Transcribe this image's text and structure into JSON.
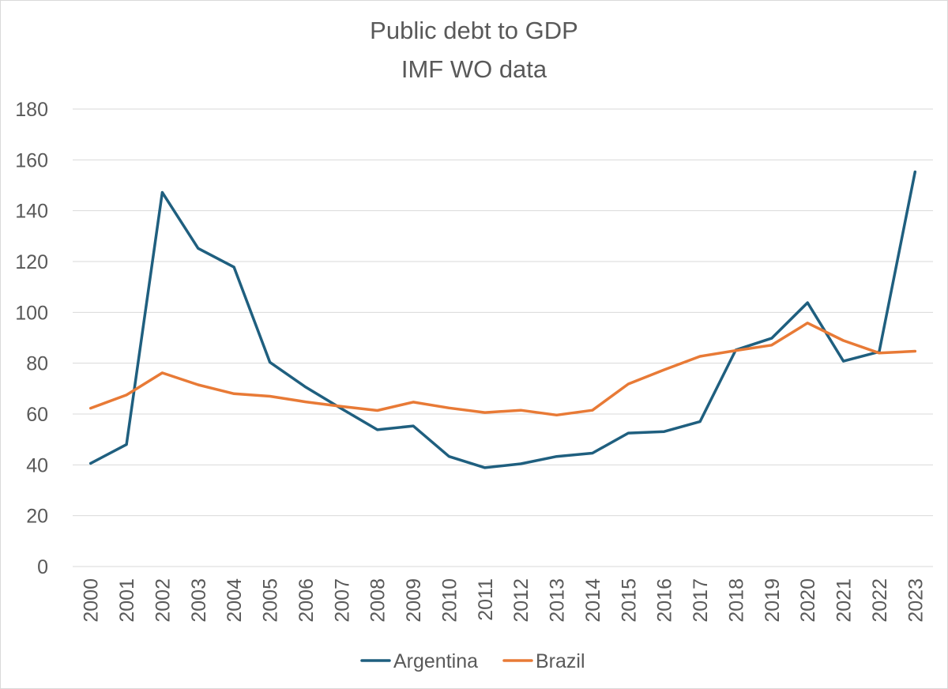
{
  "chart_data": {
    "type": "line",
    "title": "Public debt to GDP",
    "subtitle": "IMF WO data",
    "xlabel": "",
    "ylabel": "",
    "x": [
      "2000",
      "2001",
      "2002",
      "2003",
      "2004",
      "2005",
      "2006",
      "2007",
      "2008",
      "2009",
      "2010",
      "2011",
      "2012",
      "2013",
      "2014",
      "2015",
      "2016",
      "2017",
      "2018",
      "2019",
      "2020",
      "2021",
      "2022",
      "2023"
    ],
    "ylim": [
      0,
      180
    ],
    "yticks": [
      "0",
      "20",
      "40",
      "60",
      "80",
      "100",
      "120",
      "140",
      "160",
      "180"
    ],
    "grid": true,
    "legend_position": "bottom",
    "series": [
      {
        "name": "Argentina",
        "color": "#1f5f7f",
        "values": [
          40.6,
          48.0,
          147.2,
          125.2,
          117.8,
          80.4,
          70.6,
          62.1,
          53.8,
          55.3,
          43.3,
          38.9,
          40.4,
          43.3,
          44.6,
          52.5,
          53.1,
          57.0,
          85.2,
          89.8,
          103.8,
          80.8,
          84.5,
          155.3
        ]
      },
      {
        "name": "Brazil",
        "color": "#e87a36",
        "values": [
          62.3,
          67.5,
          76.2,
          71.5,
          68.0,
          67.0,
          64.8,
          63.0,
          61.4,
          64.7,
          62.4,
          60.6,
          61.5,
          59.6,
          61.5,
          71.8,
          77.4,
          82.7,
          85.0,
          87.1,
          95.8,
          88.9,
          84.0,
          84.7
        ]
      }
    ]
  }
}
